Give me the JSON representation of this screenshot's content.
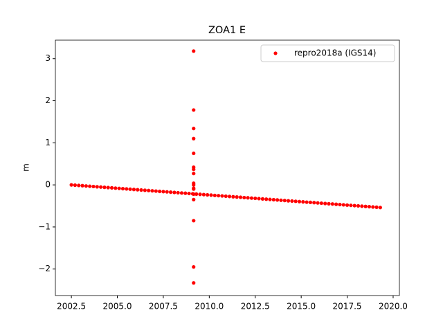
{
  "chart_data": {
    "type": "scatter",
    "title": "ZOA1 E",
    "y_label": "m",
    "series": [
      {
        "name": "repro2018a (IGS14)",
        "color": "#ff0000",
        "x": [
          2002.5,
          2002.7,
          2002.9,
          2003.1,
          2003.3,
          2003.5,
          2003.7,
          2003.9,
          2004.1,
          2004.3,
          2004.5,
          2004.7,
          2004.9,
          2005.1,
          2005.3,
          2005.5,
          2005.7,
          2005.9,
          2006.1,
          2006.3,
          2006.5,
          2006.7,
          2006.9,
          2007.1,
          2007.3,
          2007.5,
          2007.7,
          2007.9,
          2008.1,
          2008.3,
          2008.5,
          2008.7,
          2008.9,
          2009.1,
          2009.3,
          2009.5,
          2009.7,
          2009.9,
          2010.1,
          2010.3,
          2010.5,
          2010.7,
          2010.9,
          2011.1,
          2011.3,
          2011.5,
          2011.7,
          2011.9,
          2012.1,
          2012.3,
          2012.5,
          2012.7,
          2012.9,
          2013.1,
          2013.3,
          2013.5,
          2013.7,
          2013.9,
          2014.1,
          2014.3,
          2014.5,
          2014.7,
          2014.9,
          2015.1,
          2015.3,
          2015.5,
          2015.7,
          2015.9,
          2016.1,
          2016.3,
          2016.5,
          2016.7,
          2016.9,
          2017.1,
          2017.3,
          2017.5,
          2017.7,
          2017.9,
          2018.1,
          2018.3,
          2018.5,
          2018.7,
          2018.9,
          2019.1,
          2019.3,
          2009.15,
          2009.15,
          2009.15,
          2009.15,
          2009.15,
          2009.15,
          2009.15,
          2009.15,
          2009.15,
          2009.15,
          2009.15,
          2009.15,
          2009.15,
          2009.15,
          2009.15,
          2009.15,
          2009.15
        ],
        "values": [
          0,
          -0.006,
          -0.013,
          -0.019,
          -0.026,
          -0.032,
          -0.038,
          -0.045,
          -0.051,
          -0.058,
          -0.064,
          -0.07,
          -0.077,
          -0.083,
          -0.09,
          -0.096,
          -0.102,
          -0.109,
          -0.115,
          -0.122,
          -0.128,
          -0.134,
          -0.141,
          -0.147,
          -0.154,
          -0.16,
          -0.166,
          -0.173,
          -0.179,
          -0.186,
          -0.192,
          -0.198,
          -0.205,
          -0.211,
          -0.218,
          -0.224,
          -0.23,
          -0.237,
          -0.243,
          -0.25,
          -0.256,
          -0.262,
          -0.269,
          -0.275,
          -0.282,
          -0.288,
          -0.294,
          -0.301,
          -0.307,
          -0.314,
          -0.32,
          -0.326,
          -0.333,
          -0.339,
          -0.346,
          -0.352,
          -0.358,
          -0.365,
          -0.371,
          -0.378,
          -0.384,
          -0.39,
          -0.397,
          -0.403,
          -0.41,
          -0.416,
          -0.422,
          -0.429,
          -0.435,
          -0.442,
          -0.448,
          -0.454,
          -0.461,
          -0.467,
          -0.474,
          -0.48,
          -0.486,
          -0.493,
          -0.499,
          -0.506,
          -0.512,
          -0.518,
          -0.525,
          -0.531,
          -0.538,
          3.18,
          1.78,
          1.34,
          1.1,
          0.75,
          0.42,
          0.37,
          0.27,
          0.04,
          0,
          -0.08,
          -0.1,
          -0.22,
          -0.35,
          -0.85,
          -1.95,
          -2.33
        ]
      }
    ],
    "xlim": [
      2001.63,
      2020.34
    ],
    "xticks": [
      2002.5,
      {
        "value": 2005,
        "label": "2005.0"
      },
      2007.5,
      {
        "value": 2010,
        "label": "2010.0"
      },
      2012.5,
      {
        "value": 2015,
        "label": "2015.0"
      },
      2017.5,
      {
        "value": 2020,
        "label": "2020.0"
      }
    ],
    "ylim": [
      -2.63,
      3.44
    ],
    "yticks": [
      {
        "value": -2,
        "label": "−2"
      },
      {
        "value": -1,
        "label": "−1"
      },
      0,
      1,
      2,
      3
    ],
    "legend": "upper right"
  }
}
